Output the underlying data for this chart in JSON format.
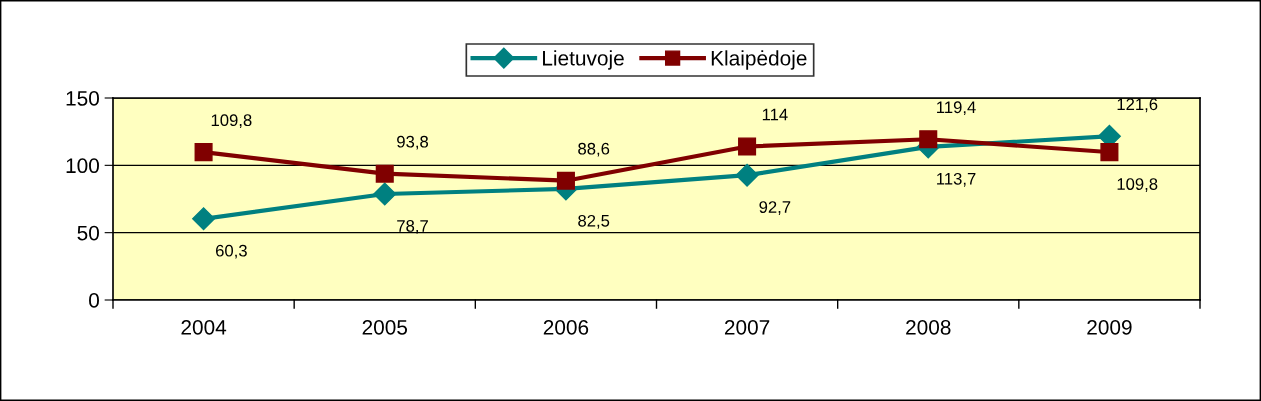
{
  "chart_data": {
    "type": "line",
    "categories": [
      "2004",
      "2005",
      "2006",
      "2007",
      "2008",
      "2009"
    ],
    "series": [
      {
        "name": "Lietuvoje",
        "color": "#008080",
        "marker": "diamond",
        "values": [
          60.3,
          78.7,
          82.5,
          92.7,
          113.7,
          121.6
        ],
        "value_labels": [
          "60,3",
          "78,7",
          "82,5",
          "92,7",
          "113,7",
          "121,6"
        ]
      },
      {
        "name": "Klaipėdoje",
        "color": "#800000",
        "marker": "square",
        "values": [
          109.8,
          93.8,
          88.6,
          114,
          119.4,
          109.8
        ],
        "value_labels": [
          "109,8",
          "93,8",
          "88,6",
          "114",
          "119,4",
          "109,8"
        ]
      }
    ],
    "ylim": [
      0,
      150
    ],
    "yticks": [
      0,
      50,
      100,
      150
    ],
    "grid": "y",
    "legend": "top",
    "line_style": "solid"
  }
}
